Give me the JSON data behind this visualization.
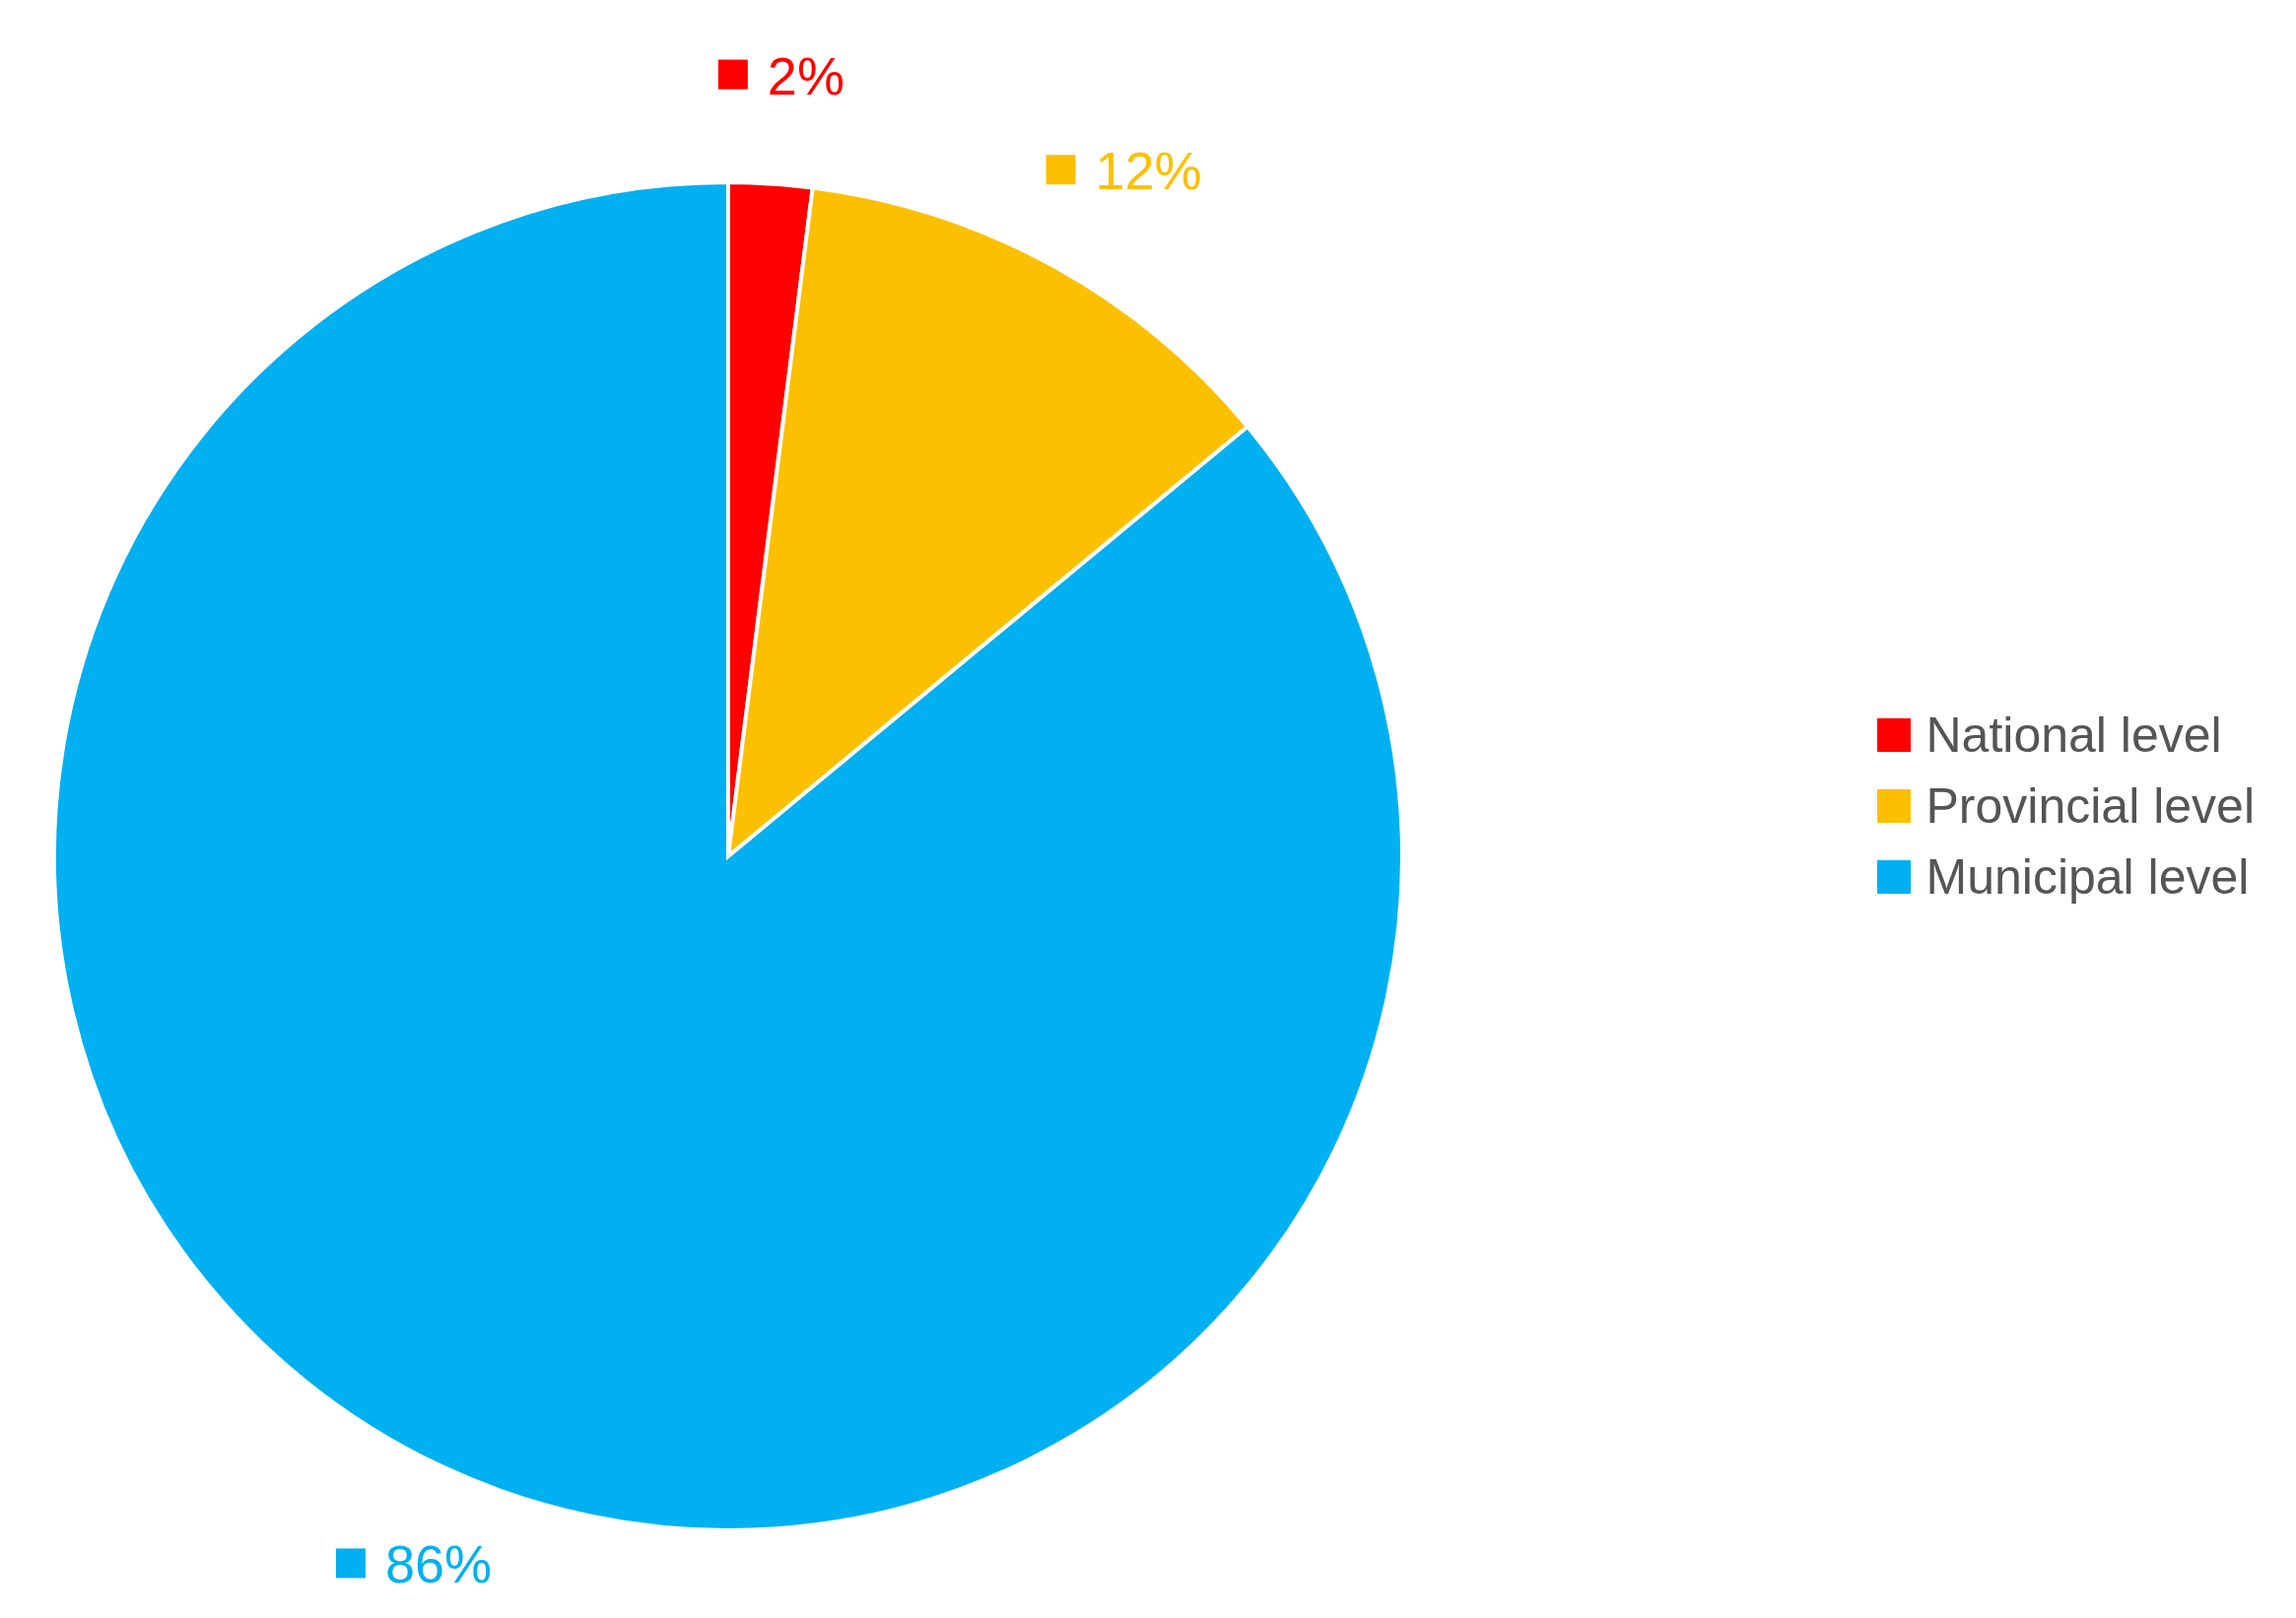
{
  "chart_data": {
    "type": "pie",
    "categories": [
      "National level",
      "Provincial level",
      "Municipal level"
    ],
    "values": [
      2,
      12,
      86
    ],
    "colors": [
      "#ff0000",
      "#fcc000",
      "#00b0f0"
    ],
    "value_labels": [
      "2%",
      "12%",
      "86%"
    ],
    "legend": "right"
  }
}
